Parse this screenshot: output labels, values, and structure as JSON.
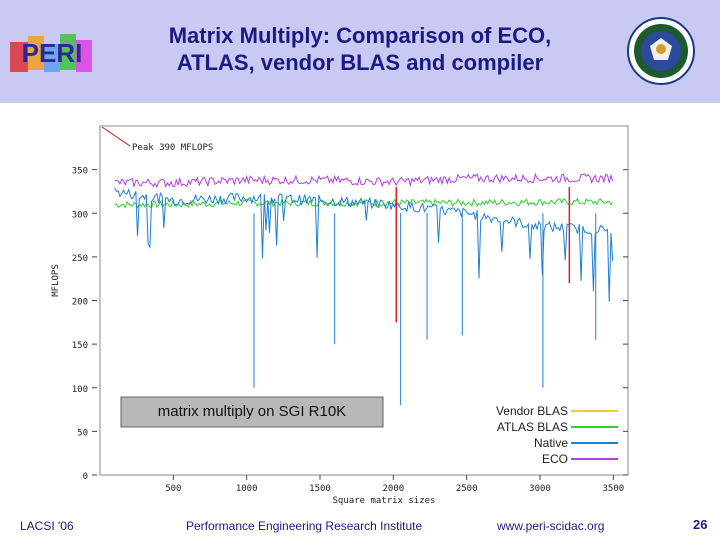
{
  "header": {
    "title_line1": "Matrix Multiply: Comparison of ECO,",
    "title_line2": "ATLAS, vendor BLAS and compiler",
    "logo_text": "PERI"
  },
  "footer": {
    "left": "LACSI '06",
    "center": "Performance Engineering Research Institute",
    "right": "www.peri-scidac.org",
    "page": "26"
  },
  "colors": {
    "header_bg": "#c9c9f3",
    "title": "#1a1a80",
    "vendor_blas": "#f2c84a",
    "atlas_blas": "#33cc33",
    "native": "#1f7fd0",
    "eco": "#b040e0",
    "eco_alt": "#e02020"
  },
  "chart_data": {
    "type": "line",
    "title": "",
    "xlabel": "Square matrix sizes",
    "ylabel": "MFLOPS",
    "xlim": [
      0,
      3600
    ],
    "ylim": [
      0,
      400
    ],
    "x_ticks": [
      500,
      1000,
      1500,
      2000,
      2500,
      3000,
      3500
    ],
    "y_ticks": [
      0,
      50,
      100,
      150,
      200,
      250,
      300,
      350
    ],
    "annotation": "Peak 390 MFLOPS",
    "peak": 390,
    "caption": "matrix multiply on SGI R10K",
    "legend_position": "bottom-right",
    "series": [
      {
        "name": "Vendor BLAS",
        "x": [
          100,
          3500
        ],
        "values": [
          null,
          null
        ]
      },
      {
        "name": "ATLAS BLAS",
        "x": [
          100,
          500,
          1000,
          1500,
          2000,
          2500,
          3000,
          3500
        ],
        "values": [
          310,
          310,
          312,
          312,
          312,
          312,
          313,
          313
        ]
      },
      {
        "name": "Native",
        "x": [
          100,
          500,
          1000,
          1500,
          2000,
          2500,
          3000,
          3500
        ],
        "values": [
          325,
          315,
          318,
          315,
          310,
          300,
          285,
          280
        ]
      },
      {
        "name": "ECO",
        "x": [
          100,
          500,
          1000,
          1500,
          2000,
          2500,
          3000,
          3500
        ],
        "values": [
          335,
          335,
          338,
          338,
          336,
          340,
          340,
          340
        ]
      }
    ]
  }
}
